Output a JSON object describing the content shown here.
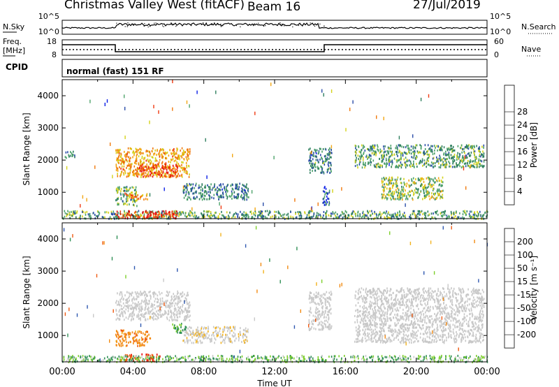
{
  "header": {
    "title": "Christmas Valley West (fitACF)",
    "beam": "Beam 16",
    "date": "27/Jul/2019"
  },
  "top_panels": {
    "nsky_label": "N.Sky",
    "nsky_ticks": [
      "10^5",
      "10^0"
    ],
    "nsearch_label": "N.Search",
    "nsearch_ticks": [
      "10^5",
      "10^0"
    ],
    "freq_label": "Freq.",
    "freq_unit": "[MHz]",
    "freq_ticks": [
      "18",
      "8"
    ],
    "nave_label": "Nave",
    "nave_ticks": [
      "60",
      "0"
    ],
    "cpid_label": "CPID",
    "cpid_value": "normal (fast) 151 RF"
  },
  "chart_data": [
    {
      "type": "heatmap",
      "title": "",
      "xlabel": "Time UT",
      "ylabel": "Slant Range [km]",
      "x_ticks": [
        "00:00",
        "04:00",
        "08:00",
        "12:00",
        "16:00",
        "20:00",
        "00:00"
      ],
      "x_range_hours": [
        0,
        24
      ],
      "y_ticks": [
        1000,
        2000,
        3000,
        4000
      ],
      "y_range_km": [
        180,
        4500
      ],
      "colorbar_label": "Power [dB]",
      "colorbar_ticks": [
        "4",
        "8",
        "12",
        "16",
        "20",
        "24",
        "28"
      ],
      "colorbar_colors": [
        "#0a1ee6",
        "#2a4ca8",
        "#2f7f5f",
        "#4ea36a",
        "#d4d21a",
        "#f2a612",
        "#f07a0e",
        "#ef3a12",
        "#e60c0c"
      ],
      "grid": false
    },
    {
      "type": "heatmap",
      "title": "",
      "xlabel": "Time UT",
      "ylabel": "Slant Range [km]",
      "x_ticks": [
        "00:00",
        "04:00",
        "08:00",
        "12:00",
        "16:00",
        "20:00",
        "00:00"
      ],
      "x_range_hours": [
        0,
        24
      ],
      "y_ticks": [
        1000,
        2000,
        3000,
        4000
      ],
      "y_range_km": [
        180,
        4500
      ],
      "colorbar_label": "Velocity [m s⁻¹]",
      "colorbar_ticks": [
        "200",
        "100",
        "50",
        "15",
        "-15",
        "-50",
        "-100",
        "-200"
      ],
      "colorbar_colors": [
        "#1a2ad0",
        "#2f58b0",
        "#2f8f55",
        "#7ccf2a",
        "#c8c8c8",
        "#f2b21e",
        "#f28a12",
        "#ef5a12",
        "#e60c0c"
      ],
      "grid": false
    }
  ],
  "power_features": [
    {
      "t0": 0.1,
      "t1": 0.7,
      "r0": 2100,
      "r1": 2300,
      "v": 10
    },
    {
      "t0": 3.0,
      "t1": 7.2,
      "r0": 1500,
      "r1": 2400,
      "v": 20
    },
    {
      "t0": 4.2,
      "t1": 6.5,
      "r0": 1500,
      "r1": 1900,
      "v": 26
    },
    {
      "t0": 3.0,
      "t1": 4.2,
      "r0": 600,
      "r1": 1200,
      "v": 12
    },
    {
      "t0": 3.5,
      "t1": 4.8,
      "r0": 800,
      "r1": 1000,
      "v": 22
    },
    {
      "t0": 6.8,
      "t1": 10.5,
      "r0": 800,
      "r1": 1300,
      "v": 10
    },
    {
      "t0": 13.9,
      "t1": 15.2,
      "r0": 1600,
      "r1": 2400,
      "v": 10
    },
    {
      "t0": 14.7,
      "t1": 15.1,
      "r0": 600,
      "r1": 1200,
      "v": 8
    },
    {
      "t0": 16.5,
      "t1": 23.8,
      "r0": 1800,
      "r1": 2500,
      "v": 12
    },
    {
      "t0": 18.0,
      "t1": 21.5,
      "r0": 800,
      "r1": 1500,
      "v": 15
    },
    {
      "t0": 0.0,
      "t1": 24.0,
      "r0": 200,
      "r1": 450,
      "v": 12
    },
    {
      "t0": 3.0,
      "t1": 6.5,
      "r0": 220,
      "r1": 450,
      "v": 27
    }
  ],
  "velocity_features": [
    {
      "t0": 3.0,
      "t1": 7.2,
      "r0": 1500,
      "r1": 2400,
      "v": 0
    },
    {
      "t0": 3.0,
      "t1": 5.0,
      "r0": 700,
      "r1": 1200,
      "v": -55
    },
    {
      "t0": 3.5,
      "t1": 5.5,
      "r0": 220,
      "r1": 450,
      "v": -140
    },
    {
      "t0": 6.8,
      "t1": 10.5,
      "r0": 800,
      "r1": 1300,
      "v": -5
    },
    {
      "t0": 13.9,
      "t1": 15.2,
      "r0": 1200,
      "r1": 2400,
      "v": 0
    },
    {
      "t0": 16.5,
      "t1": 23.8,
      "r0": 800,
      "r1": 2500,
      "v": 0
    },
    {
      "t0": 0.0,
      "t1": 24.0,
      "r0": 200,
      "r1": 400,
      "v": 25
    },
    {
      "t0": 6.2,
      "t1": 7.0,
      "r0": 1100,
      "r1": 1400,
      "v": 40
    }
  ]
}
